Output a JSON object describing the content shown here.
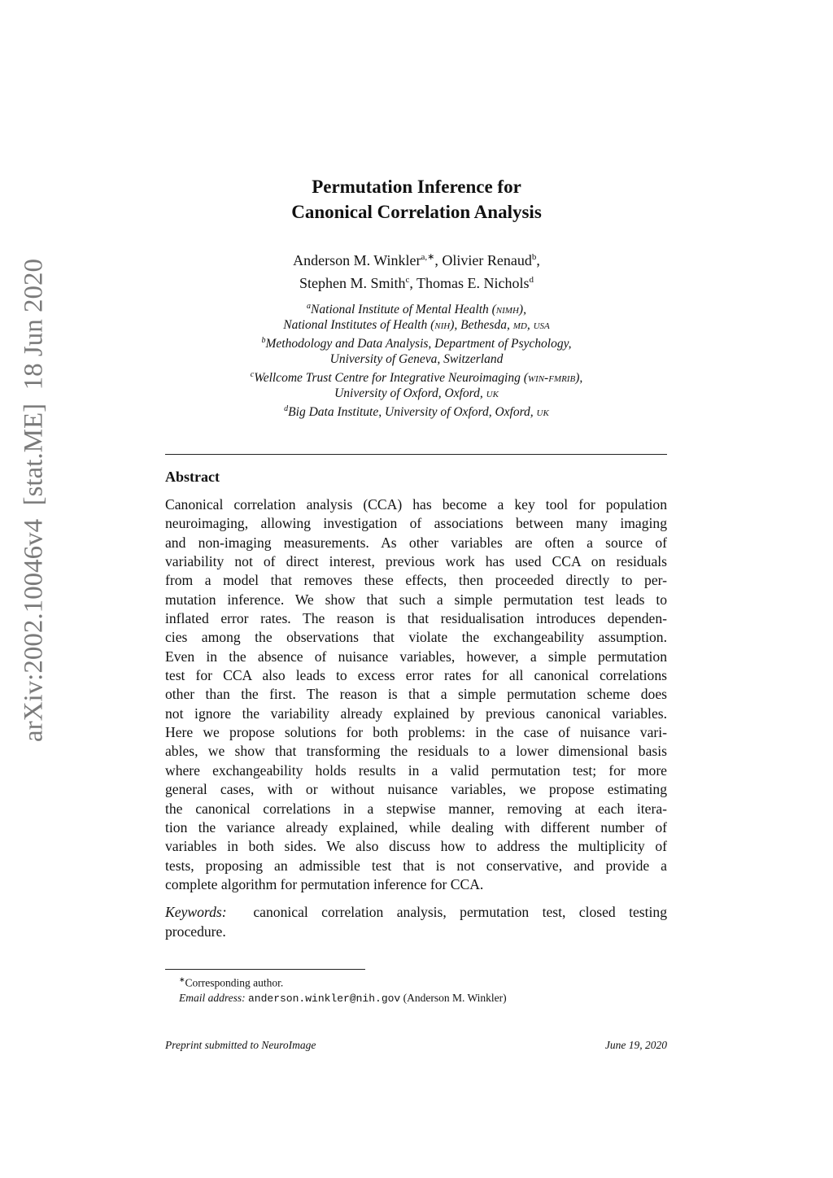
{
  "arxiv_id": "arXiv:2002.10046v4  [stat.ME]  18 Jun 2020",
  "title": [
    "Permutation Inference for",
    "Canonical Correlation Analysis"
  ],
  "authors": [
    {
      "name": "Anderson M. Winkler",
      "sup": "a,∗"
    },
    {
      "name": "Olivier Renaud",
      "sup": "b"
    },
    {
      "name": "Stephen M. Smith",
      "sup": "c"
    },
    {
      "name": "Thomas E. Nichols",
      "sup": "d"
    }
  ],
  "affiliations": [
    {
      "sup": "a",
      "lines": [
        "National Institute of Mental Health (nimh),",
        "National Institutes of Health (nih), Bethesda, md, usa"
      ]
    },
    {
      "sup": "b",
      "lines": [
        "Methodology and Data Analysis, Department of Psychology,",
        "University of Geneva, Switzerland"
      ]
    },
    {
      "sup": "c",
      "lines": [
        "Wellcome Trust Centre for Integrative Neuroimaging (win-fmrib),",
        "University of Oxford, Oxford, uk"
      ]
    },
    {
      "sup": "d",
      "lines": [
        "Big Data Institute, University of Oxford, Oxford, uk"
      ]
    }
  ],
  "abstract": {
    "heading": "Abstract",
    "lines": [
      "Canonical correlation analysis (CCA) has become a key tool for population",
      "neuroimaging, allowing investigation of associations between many imaging",
      "and non-imaging measurements. As other variables are often a source of",
      "variability not of direct interest, previous work has used CCA on residuals",
      "from a model that removes these effects, then proceeded directly to per-",
      "mutation inference. We show that such a simple permutation test leads to",
      "inflated error rates. The reason is that residualisation introduces dependen-",
      "cies among the observations that violate the exchangeability assumption.",
      "Even in the absence of nuisance variables, however, a simple permutation",
      "test for CCA also leads to excess error rates for all canonical correlations",
      "other than the first. The reason is that a simple permutation scheme does",
      "not ignore the variability already explained by previous canonical variables.",
      "Here we propose solutions for both problems: in the case of nuisance vari-",
      "ables, we show that transforming the residuals to a lower dimensional basis",
      "where exchangeability holds results in a valid permutation test; for more",
      "general cases, with or without nuisance variables, we propose estimating",
      "the canonical correlations in a stepwise manner, removing at each itera-",
      "tion the variance already explained, while dealing with different number of",
      "variables in both sides. We also discuss how to address the multiplicity of",
      "tests, proposing an admissible test that is not conservative, and provide a",
      "complete algorithm for permutation inference for CCA."
    ]
  },
  "keywords": {
    "label": "Keywords:",
    "line1": "canonical correlation analysis, permutation test, closed testing",
    "line2": "procedure."
  },
  "footnote": {
    "marker": "∗",
    "corresponding": "Corresponding author.",
    "email_label": "Email address:",
    "email": "anderson.winkler@nih.gov",
    "email_name": "(Anderson M. Winkler)"
  },
  "footer": {
    "left": "Preprint submitted to NeuroImage",
    "right": "June 19, 2020"
  }
}
